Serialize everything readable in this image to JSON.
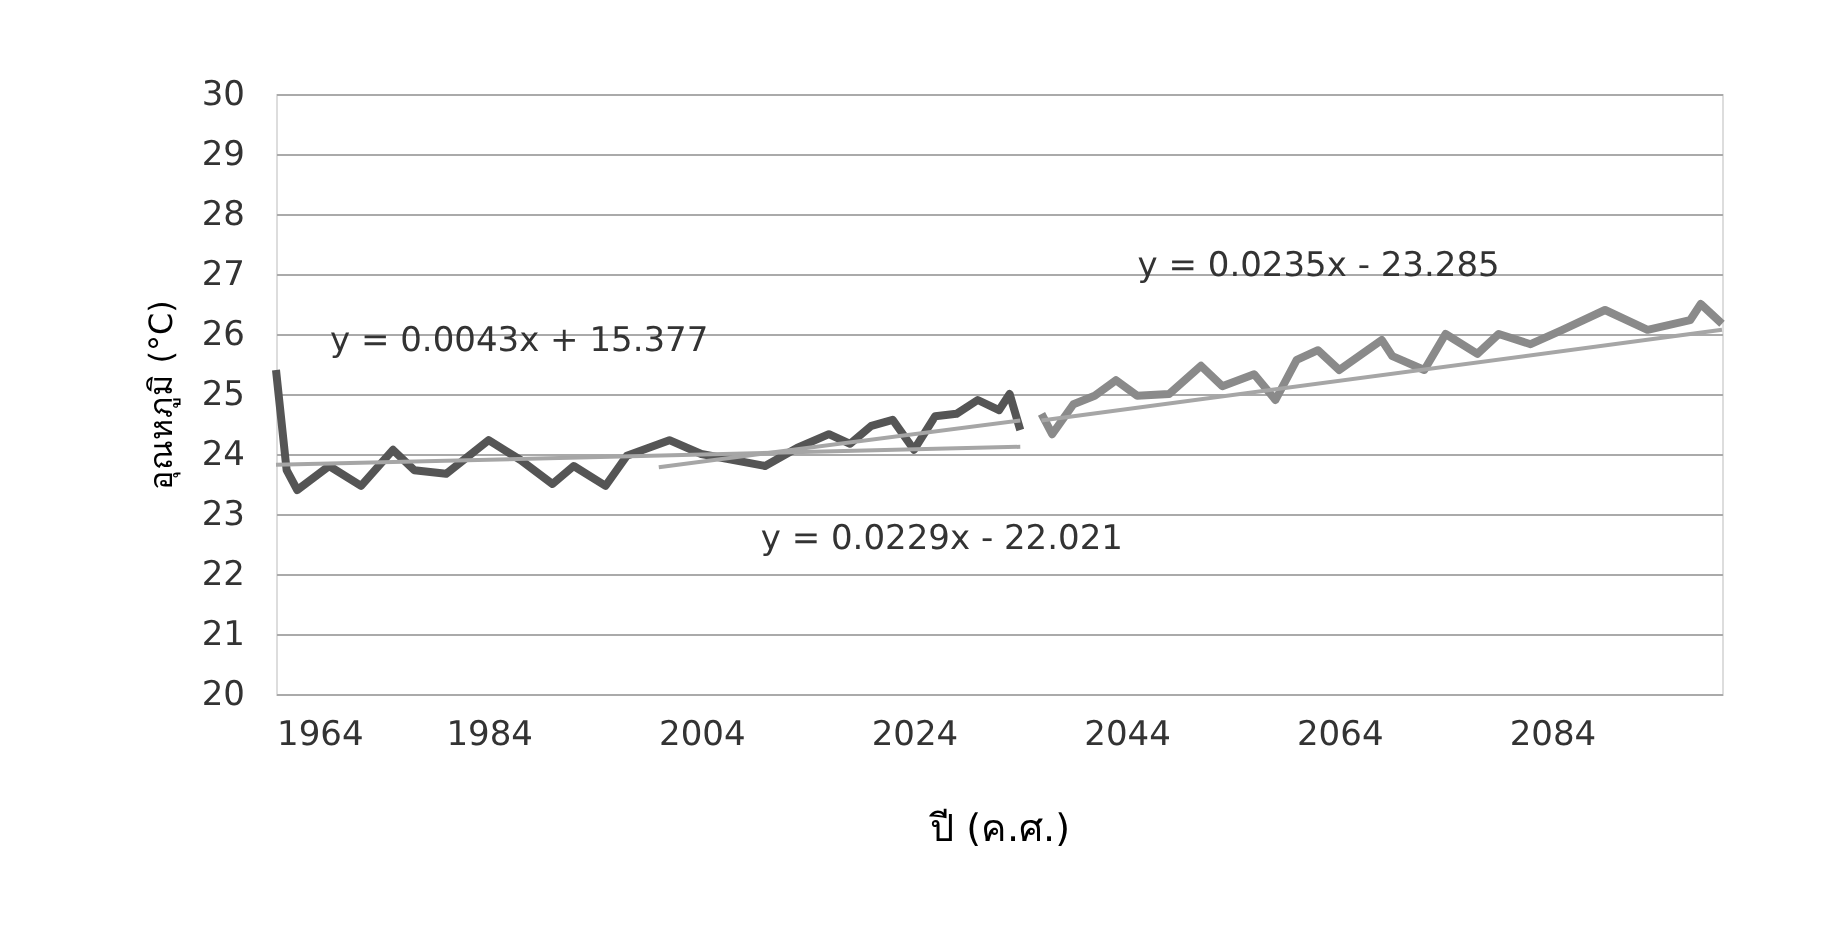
{
  "chart_data": {
    "type": "line",
    "xlabel": "ปี (ค.ศ.)",
    "ylabel": "อุณหภูมิ (°C)",
    "xlim": [
      1964,
      2100
    ],
    "xticks": [
      1964,
      1984,
      2004,
      2024,
      2044,
      2064,
      2084
    ],
    "ylim": [
      20,
      30
    ],
    "yticks": [
      20,
      21,
      22,
      23,
      24,
      25,
      26,
      27,
      28,
      29,
      30
    ],
    "grid": "y",
    "marker": "none",
    "line_style": "solid",
    "series": [
      {
        "color": "#555555",
        "x": [
          1964,
          1965,
          1966,
          1969,
          1972,
          1975,
          1977,
          1980,
          1984,
          1987,
          1990,
          1992,
          1995,
          1997,
          2001,
          2004,
          2010,
          2013,
          2016,
          2018,
          2020,
          2022,
          2024,
          2026,
          2028,
          2030,
          2032,
          2033,
          2034
        ],
        "values": [
          25.4,
          23.73,
          23.4,
          23.8,
          23.47,
          24.07,
          23.73,
          23.67,
          24.23,
          23.9,
          23.5,
          23.8,
          23.47,
          23.97,
          24.23,
          24.0,
          23.8,
          24.1,
          24.33,
          24.17,
          24.47,
          24.57,
          24.07,
          24.63,
          24.67,
          24.9,
          24.73,
          25.0,
          24.4
        ]
      },
      {
        "color": "#8a8a8a",
        "x": [
          2036,
          2037,
          2039,
          2041,
          2043,
          2045,
          2048,
          2051,
          2053,
          2056,
          2058,
          2060,
          2062,
          2064,
          2068,
          2069,
          2072,
          2074,
          2077,
          2079,
          2082,
          2085,
          2089,
          2093,
          2097,
          2098,
          2100
        ],
        "values": [
          24.67,
          24.33,
          24.83,
          24.97,
          25.23,
          24.97,
          25.0,
          25.47,
          25.13,
          25.33,
          24.9,
          25.57,
          25.73,
          25.4,
          25.9,
          25.63,
          25.4,
          26.0,
          25.67,
          26.0,
          25.83,
          26.07,
          26.4,
          26.07,
          26.23,
          26.5,
          26.17
        ]
      },
      {
        "type": "line",
        "color": "#a6a6a6",
        "x": [
          1964,
          2034
        ],
        "values": [
          23.82,
          24.12
        ]
      },
      {
        "type": "line",
        "color": "#a6a6a6",
        "x": [
          2000,
          2034
        ],
        "values": [
          23.78,
          24.56
        ]
      },
      {
        "type": "line",
        "color": "#a6a6a6",
        "x": [
          2036,
          2100
        ],
        "values": [
          24.56,
          26.07
        ]
      }
    ],
    "annotations": [
      "y = 0.0043x + 15.377",
      "y = 0.0229x - 22.021",
      "y = 0.0235x - 23.285"
    ]
  }
}
